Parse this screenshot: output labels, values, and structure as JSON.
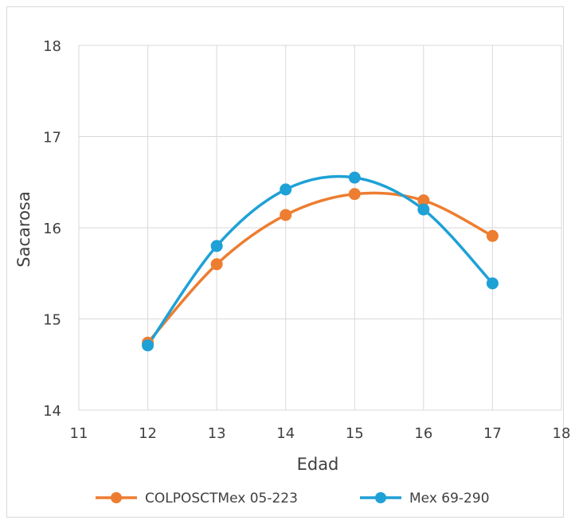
{
  "chart_data": {
    "type": "scatter",
    "title": "",
    "xlabel": "Edad",
    "ylabel": "Sacarosa",
    "xlim": [
      11,
      18
    ],
    "ylim": [
      14,
      18
    ],
    "x_ticks": [
      11,
      12,
      13,
      14,
      15,
      16,
      17,
      18
    ],
    "y_ticks": [
      14,
      15,
      16,
      17,
      18
    ],
    "grid": "vertical and horizontal",
    "legend_position": "bottom",
    "line_style": "smoothed",
    "series": [
      {
        "name": "COLPOSCTMex  05-223",
        "color": "#ED7D31",
        "x": [
          12,
          13,
          14,
          15,
          16,
          17
        ],
        "y": [
          14.74,
          15.6,
          16.14,
          16.37,
          16.3,
          15.91
        ]
      },
      {
        "name": "Mex 69-290",
        "color": "#1EA1D6",
        "x": [
          12,
          13,
          14,
          15,
          16,
          17
        ],
        "y": [
          14.71,
          15.8,
          16.42,
          16.55,
          16.2,
          15.39
        ]
      }
    ]
  }
}
